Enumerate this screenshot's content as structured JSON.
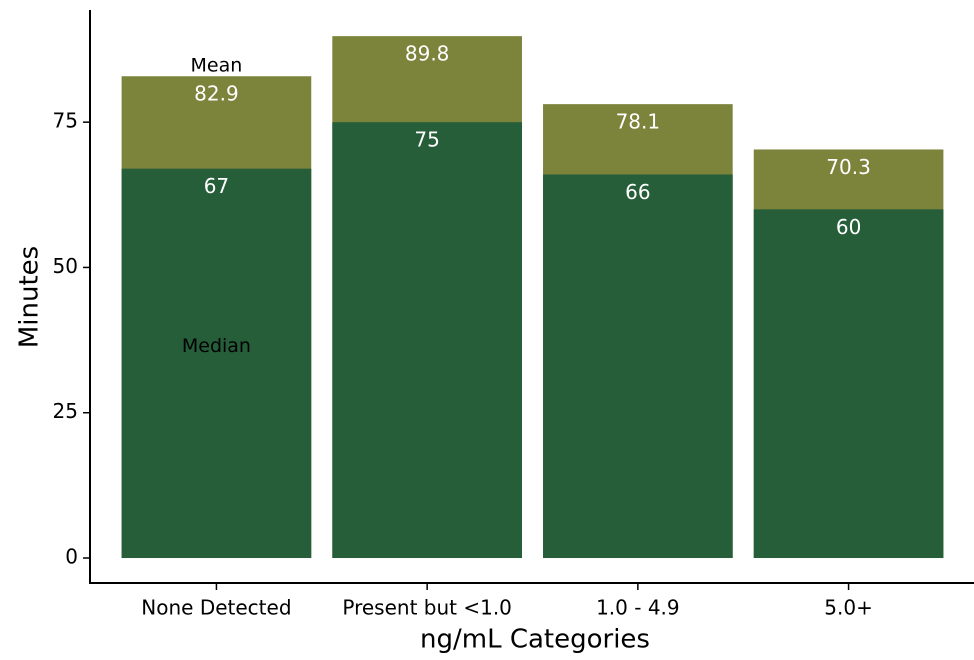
{
  "chart_data": {
    "type": "bar",
    "categories": [
      "None Detected",
      "Present but <1.0",
      "1.0 - 4.9",
      "5.0+"
    ],
    "series": [
      {
        "name": "Mean",
        "color": "#7c833b",
        "values": [
          82.9,
          89.8,
          78.1,
          70.3
        ]
      },
      {
        "name": "Median",
        "color": "#265e3a",
        "values": [
          67,
          75,
          66,
          60
        ]
      }
    ],
    "x_label": "ng/mL Categories",
    "y_label": "Minutes",
    "ylim": [
      -4.3,
      94.3
    ],
    "yticks": [
      0,
      25,
      50,
      75
    ]
  }
}
